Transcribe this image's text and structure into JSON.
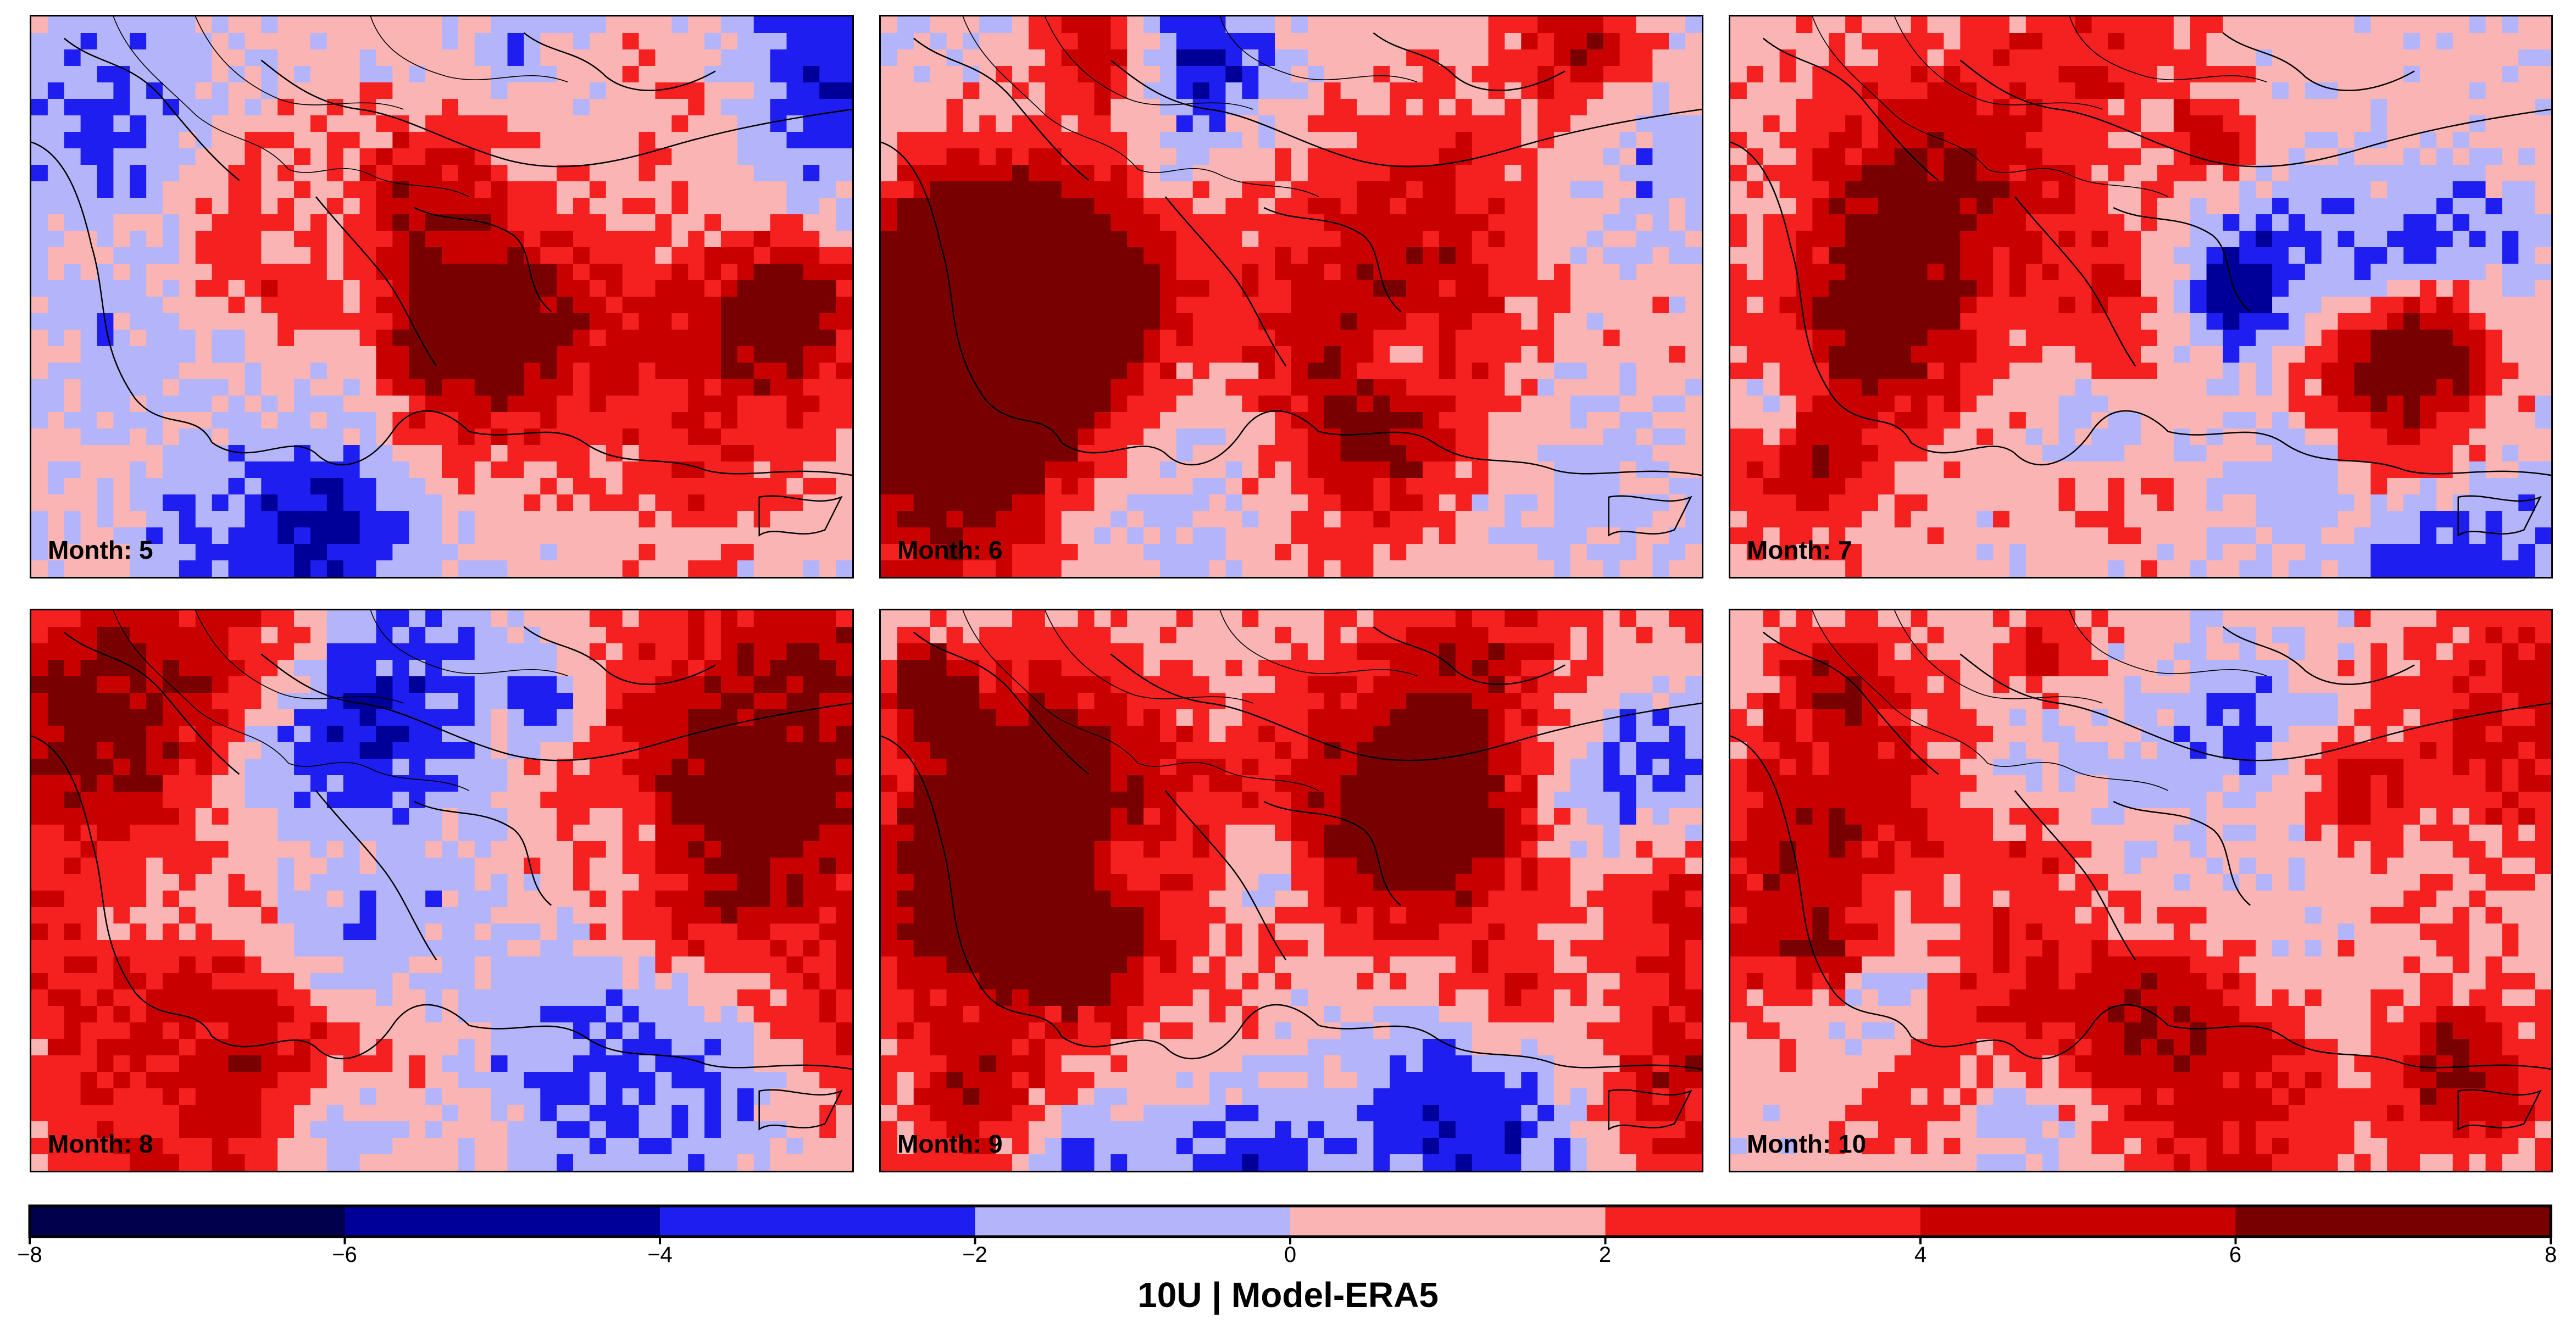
{
  "panels": [
    {
      "label": "Month: 5",
      "seed": 5
    },
    {
      "label": "Month: 6",
      "seed": 6
    },
    {
      "label": "Month: 7",
      "seed": 7
    },
    {
      "label": "Month: 8",
      "seed": 8
    },
    {
      "label": "Month: 9",
      "seed": 9
    },
    {
      "label": "Month: 10",
      "seed": 10
    }
  ],
  "colorbar": {
    "title": "10U | Model-ERA5",
    "ticks": [
      "−8",
      "−6",
      "−4",
      "−2",
      "0",
      "2",
      "4",
      "6",
      "8"
    ],
    "bins": [
      {
        "from": -8,
        "to": -6,
        "color": "#00004c"
      },
      {
        "from": -6,
        "to": -4,
        "color": "#000099"
      },
      {
        "from": -4,
        "to": -2,
        "color": "#1e1ef0"
      },
      {
        "from": -2,
        "to": 0,
        "color": "#b4b4fa"
      },
      {
        "from": 0,
        "to": 2,
        "color": "#fab4b4"
      },
      {
        "from": 2,
        "to": 4,
        "color": "#f52020"
      },
      {
        "from": 4,
        "to": 6,
        "color": "#c80000"
      },
      {
        "from": 6,
        "to": 8,
        "color": "#780000"
      }
    ]
  }
}
